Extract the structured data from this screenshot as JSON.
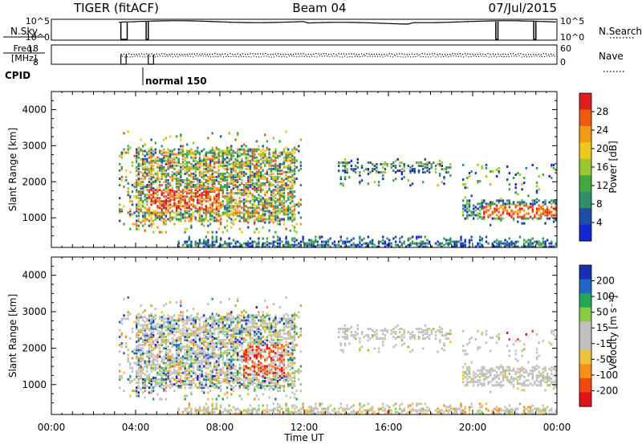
{
  "header": {
    "title": "TIGER (fitACF)",
    "beam": "Beam 04",
    "date": "07/Jul/2015"
  },
  "status_panels": {
    "nsky": {
      "label": "N.Sky",
      "ticks": [
        "10^5",
        "10^0"
      ]
    },
    "nsearch": {
      "label": "N.Search",
      "ticks": [
        "10^5",
        "10^0"
      ]
    },
    "freq": {
      "label_line1": "Freq.",
      "label_line2": "[MHz]",
      "ticks": [
        "18",
        "8"
      ]
    },
    "nave": {
      "label": "Nave",
      "ticks": [
        "60",
        "0"
      ]
    },
    "cpid": {
      "label": "CPID",
      "mode": "normal 150"
    }
  },
  "colors": {
    "power_scale": [
      "#1428d2",
      "#1e4fa8",
      "#2e8f6a",
      "#3fa83f",
      "#9cc82f",
      "#f0c81e",
      "#f29a14",
      "#ee5a12",
      "#e01e1e"
    ],
    "velocity_scale": [
      "#e01414",
      "#ee4a10",
      "#f5901a",
      "#f0c040",
      "#c0c0c0",
      "#c0c0c0",
      "#88cc44",
      "#22a855",
      "#2266c4",
      "#1a2eb4"
    ]
  },
  "chart_data": [
    {
      "type": "heatmap",
      "title": "",
      "xlabel": "",
      "ylabel": "Slant Range [km]",
      "x_ticks": [
        "00:00",
        "04:00",
        "08:00",
        "12:00",
        "16:00",
        "20:00",
        "00:00"
      ],
      "y_ticks": [
        "1000",
        "2000",
        "3000",
        "4000"
      ],
      "xlim": [
        0,
        24
      ],
      "ylim": [
        180,
        4500
      ],
      "colorbar": {
        "label": "Power [dB]",
        "ticks": [
          "4",
          "8",
          "12",
          "16",
          "20",
          "24",
          "28"
        ],
        "range": [
          0,
          32
        ]
      },
      "echo_regions": [
        {
          "t0": 3.2,
          "t1": 11.8,
          "r0": 600,
          "r1": 3400,
          "level": "high"
        },
        {
          "t0": 13.6,
          "t1": 19.0,
          "r0": 1900,
          "r1": 2600,
          "level": "low"
        },
        {
          "t0": 19.5,
          "t1": 24.0,
          "r0": 800,
          "r1": 1600,
          "level": "medium"
        },
        {
          "t0": 6.0,
          "t1": 24.0,
          "r0": 180,
          "r1": 500,
          "level": "ground"
        }
      ]
    },
    {
      "type": "heatmap",
      "title": "",
      "xlabel": "Time UT",
      "ylabel": "Slant Range [km]",
      "x_ticks": [
        "00:00",
        "04:00",
        "08:00",
        "12:00",
        "16:00",
        "20:00",
        "00:00"
      ],
      "y_ticks": [
        "1000",
        "2000",
        "3000",
        "4000"
      ],
      "xlim": [
        0,
        24
      ],
      "ylim": [
        180,
        4500
      ],
      "colorbar": {
        "label": "Velocity [m s⁻¹]",
        "ticks": [
          "200",
          "100",
          "50",
          "15",
          "-15",
          "-50",
          "-100",
          "-200"
        ],
        "range": [
          -250,
          250
        ]
      },
      "echo_regions": [
        {
          "t0": 3.2,
          "t1": 11.8,
          "r0": 600,
          "r1": 3400,
          "level": "mixed"
        },
        {
          "t0": 13.6,
          "t1": 19.0,
          "r0": 1900,
          "r1": 2600,
          "level": "near-zero"
        },
        {
          "t0": 19.5,
          "t1": 24.0,
          "r0": 800,
          "r1": 2400,
          "level": "near-zero"
        },
        {
          "t0": 6.0,
          "t1": 24.0,
          "r0": 180,
          "r1": 500,
          "level": "ground"
        }
      ]
    }
  ]
}
